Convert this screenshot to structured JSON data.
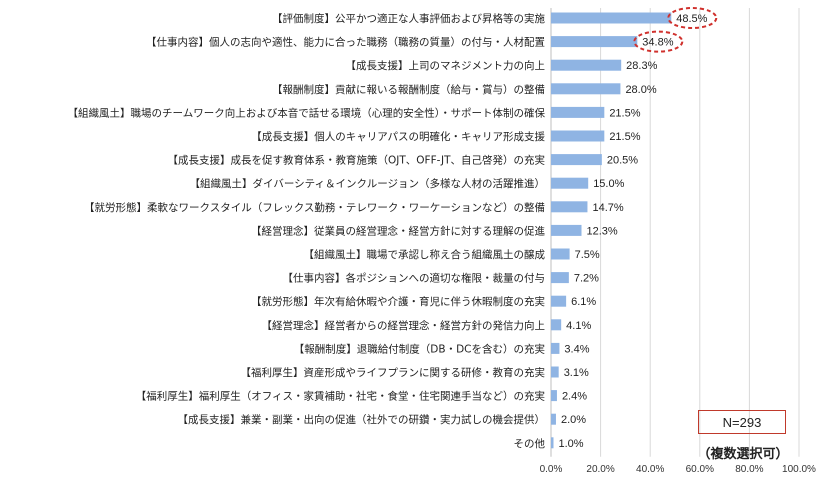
{
  "chart_data": {
    "type": "bar",
    "orientation": "horizontal",
    "categories": [
      "【評価制度】公平かつ適正な人事評価および昇格等の実施",
      "【仕事内容】個人の志向や適性、能力に合った職務（職務の質量）の付与・人材配置",
      "【成長支援】上司のマネジメント力の向上",
      "【報酬制度】貢献に報いる報酬制度（給与・賞与）の整備",
      "【組織風土】職場のチームワーク向上および本音で話せる環境（心理的安全性）・サポート体制の確保",
      "【成長支援】個人のキャリアパスの明確化・キャリア形成支援",
      "【成長支援】成長を促す教育体系・教育施策（OJT、OFF-JT、自己啓発）の充実",
      "【組織風土】ダイバーシティ＆インクルージョン（多様な人材の活躍推進）",
      "【就労形態】柔軟なワークスタイル（フレックス勤務・テレワーク・ワーケーションなど）の整備",
      "【経営理念】従業員の経営理念・経営方針に対する理解の促進",
      "【組織風土】職場で承認し称え合う組織風土の醸成",
      "【仕事内容】各ポジションへの適切な権限・裁量の付与",
      "【就労形態】年次有給休暇や介護・育児に伴う休暇制度の充実",
      "【経営理念】経営者からの経営理念・経営方針の発信力向上",
      "【報酬制度】退職給付制度（DB・DCを含む）の充実",
      "【福利厚生】資産形成やライフプランに関する研修・教育の充実",
      "【福利厚生】福利厚生（オフィス・家賃補助・社宅・食堂・住宅関連手当など）の充実",
      "【成長支援】兼業・副業・出向の促進（社外での研鑽・実力試しの機会提供）",
      "その他"
    ],
    "values": [
      48.5,
      34.8,
      28.3,
      28.0,
      21.5,
      21.5,
      20.5,
      15.0,
      14.7,
      12.3,
      7.5,
      7.2,
      6.1,
      4.1,
      3.4,
      3.1,
      2.4,
      2.0,
      1.0
    ],
    "value_labels": [
      "48.5%",
      "34.8%",
      "28.3%",
      "28.0%",
      "21.5%",
      "21.5%",
      "20.5%",
      "15.0%",
      "14.7%",
      "12.3%",
      "7.5%",
      "7.2%",
      "6.1%",
      "4.1%",
      "3.4%",
      "3.1%",
      "2.4%",
      "2.0%",
      "1.0%"
    ],
    "highlighted_indices": [
      0,
      1
    ],
    "xlim": [
      0,
      100
    ],
    "x_ticks": [
      "0.0%",
      "20.0%",
      "40.0%",
      "60.0%",
      "80.0%",
      "100.0%"
    ],
    "grid": true,
    "bar_color": "#8fb4e3",
    "highlight_color": "#d0312d",
    "annotation_n": "N=293",
    "annotation_note": "（複数選択可）"
  }
}
